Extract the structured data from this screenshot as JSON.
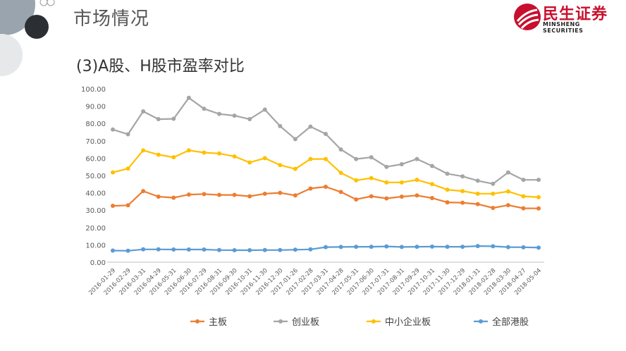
{
  "header": {
    "title": "市场情况",
    "logo_cn": "民生证券",
    "logo_en": "MINSHENG SECURITIES"
  },
  "subtitle": "(3)A股、H股市盈率对比",
  "colors": {
    "logo_red": "#c8102e",
    "axis": "#bfbfbf"
  },
  "chart_data": {
    "type": "line",
    "title": "",
    "xlabel": "",
    "ylabel": "",
    "ylim": [
      0,
      100
    ],
    "yticks": [
      "0.00",
      "10.00",
      "20.00",
      "30.00",
      "40.00",
      "50.00",
      "60.00",
      "70.00",
      "80.00",
      "90.00",
      "100.00"
    ],
    "grid": false,
    "legend": "bottom",
    "x": [
      "2016-01-29",
      "2016-02-29",
      "2016-03-31",
      "2016-04-29",
      "2016-05-31",
      "2016-06-30",
      "2016-07-29",
      "2016-08-31",
      "2016-09-30",
      "2016-10-31",
      "2016-11-30",
      "2016-12-30",
      "2017-01-26",
      "2017-02-28",
      "2017-03-31",
      "2017-04-28",
      "2017-05-31",
      "2017-06-30",
      "2017-07-31",
      "2017-08-31",
      "2017-09-29",
      "2017-10-31",
      "2017-11-30",
      "2017-12-29",
      "2018-01-31",
      "2018-02-28",
      "2018-03-30",
      "2018-04-27",
      "2018-05-04"
    ],
    "series": [
      {
        "name": "主板",
        "color": "#ed7d31",
        "values": [
          32.5,
          32.8,
          41,
          37.8,
          37.2,
          39,
          39.3,
          38.8,
          38.8,
          38,
          39.5,
          40,
          38.5,
          42.5,
          43.5,
          40.5,
          36.2,
          38,
          36.8,
          37.8,
          38.5,
          37,
          34.5,
          34.3,
          33.5,
          31.3,
          32.9,
          31.1,
          31
        ]
      },
      {
        "name": "创业板",
        "color": "#a5a5a5",
        "values": [
          76.5,
          73.8,
          87,
          82.5,
          82.7,
          94.8,
          88.5,
          85.5,
          84.5,
          82.5,
          88,
          78.5,
          71,
          78.2,
          74,
          65,
          59.5,
          60.5,
          55,
          56.5,
          59.5,
          55.5,
          51,
          49.5,
          47,
          45.2,
          51.8,
          47.5,
          47.5
        ]
      },
      {
        "name": "中小企业板",
        "color": "#ffc000",
        "values": [
          51.8,
          54,
          64.5,
          62,
          60.5,
          64.5,
          63.2,
          62.7,
          61,
          57.5,
          60,
          56,
          53.8,
          59.5,
          59.5,
          51.5,
          47.2,
          48.5,
          46,
          46,
          47.5,
          45,
          41.8,
          41,
          39.5,
          39.5,
          40.8,
          38,
          37.5
        ]
      },
      {
        "name": "全部港股",
        "color": "#5b9bd5",
        "values": [
          6.7,
          6.6,
          7.4,
          7.4,
          7.3,
          7.3,
          7.3,
          7,
          6.9,
          6.9,
          7,
          7,
          7.2,
          7.4,
          8.7,
          8.8,
          8.9,
          8.9,
          9.1,
          8.8,
          8.9,
          9,
          8.9,
          8.9,
          9.3,
          9.2,
          8.7,
          8.6,
          8.4
        ]
      }
    ]
  }
}
